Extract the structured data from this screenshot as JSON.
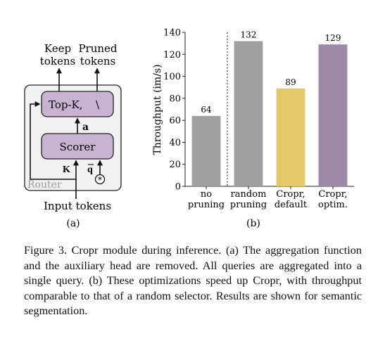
{
  "figure_a": {
    "keep_tokens": [
      "Keep",
      "tokens"
    ],
    "pruned_tokens": [
      "Pruned",
      "tokens"
    ],
    "topk_label": "Top-K,",
    "topk_symbol": "\\",
    "a_label": "a",
    "scorer_label": "Scorer",
    "k_label": "K",
    "q_label": "q",
    "star_label": "*",
    "router_label": "Router",
    "input_tokens": "Input tokens",
    "sublabel": "(a)"
  },
  "figure_b": {
    "sublabel": "(b)"
  },
  "chart_data": {
    "type": "bar",
    "categories": [
      [
        "no",
        "pruning"
      ],
      [
        "random",
        "pruning"
      ],
      [
        "Cropr,",
        "default"
      ],
      [
        "Cropr,",
        "optim."
      ]
    ],
    "values": [
      64,
      132,
      89,
      129
    ],
    "colors": [
      "#a0a0a0",
      "#a0a0a0",
      "#e3c96a",
      "#9b89a8"
    ],
    "ylabel": "Throughput (im/s)",
    "ylim": [
      0,
      140
    ],
    "yticks": [
      0,
      20,
      40,
      60,
      80,
      100,
      120,
      140
    ],
    "separator_after_index": 0,
    "data_labels": true
  },
  "caption": "Figure 3.  Cropr module during inference.  (a) The aggregation function and the auxiliary head are removed.  All queries are aggregated into a single query.  (b) These optimizations speed up Cropr, with throughput comparable to that of a random selector. Results are shown for semantic segmentation."
}
